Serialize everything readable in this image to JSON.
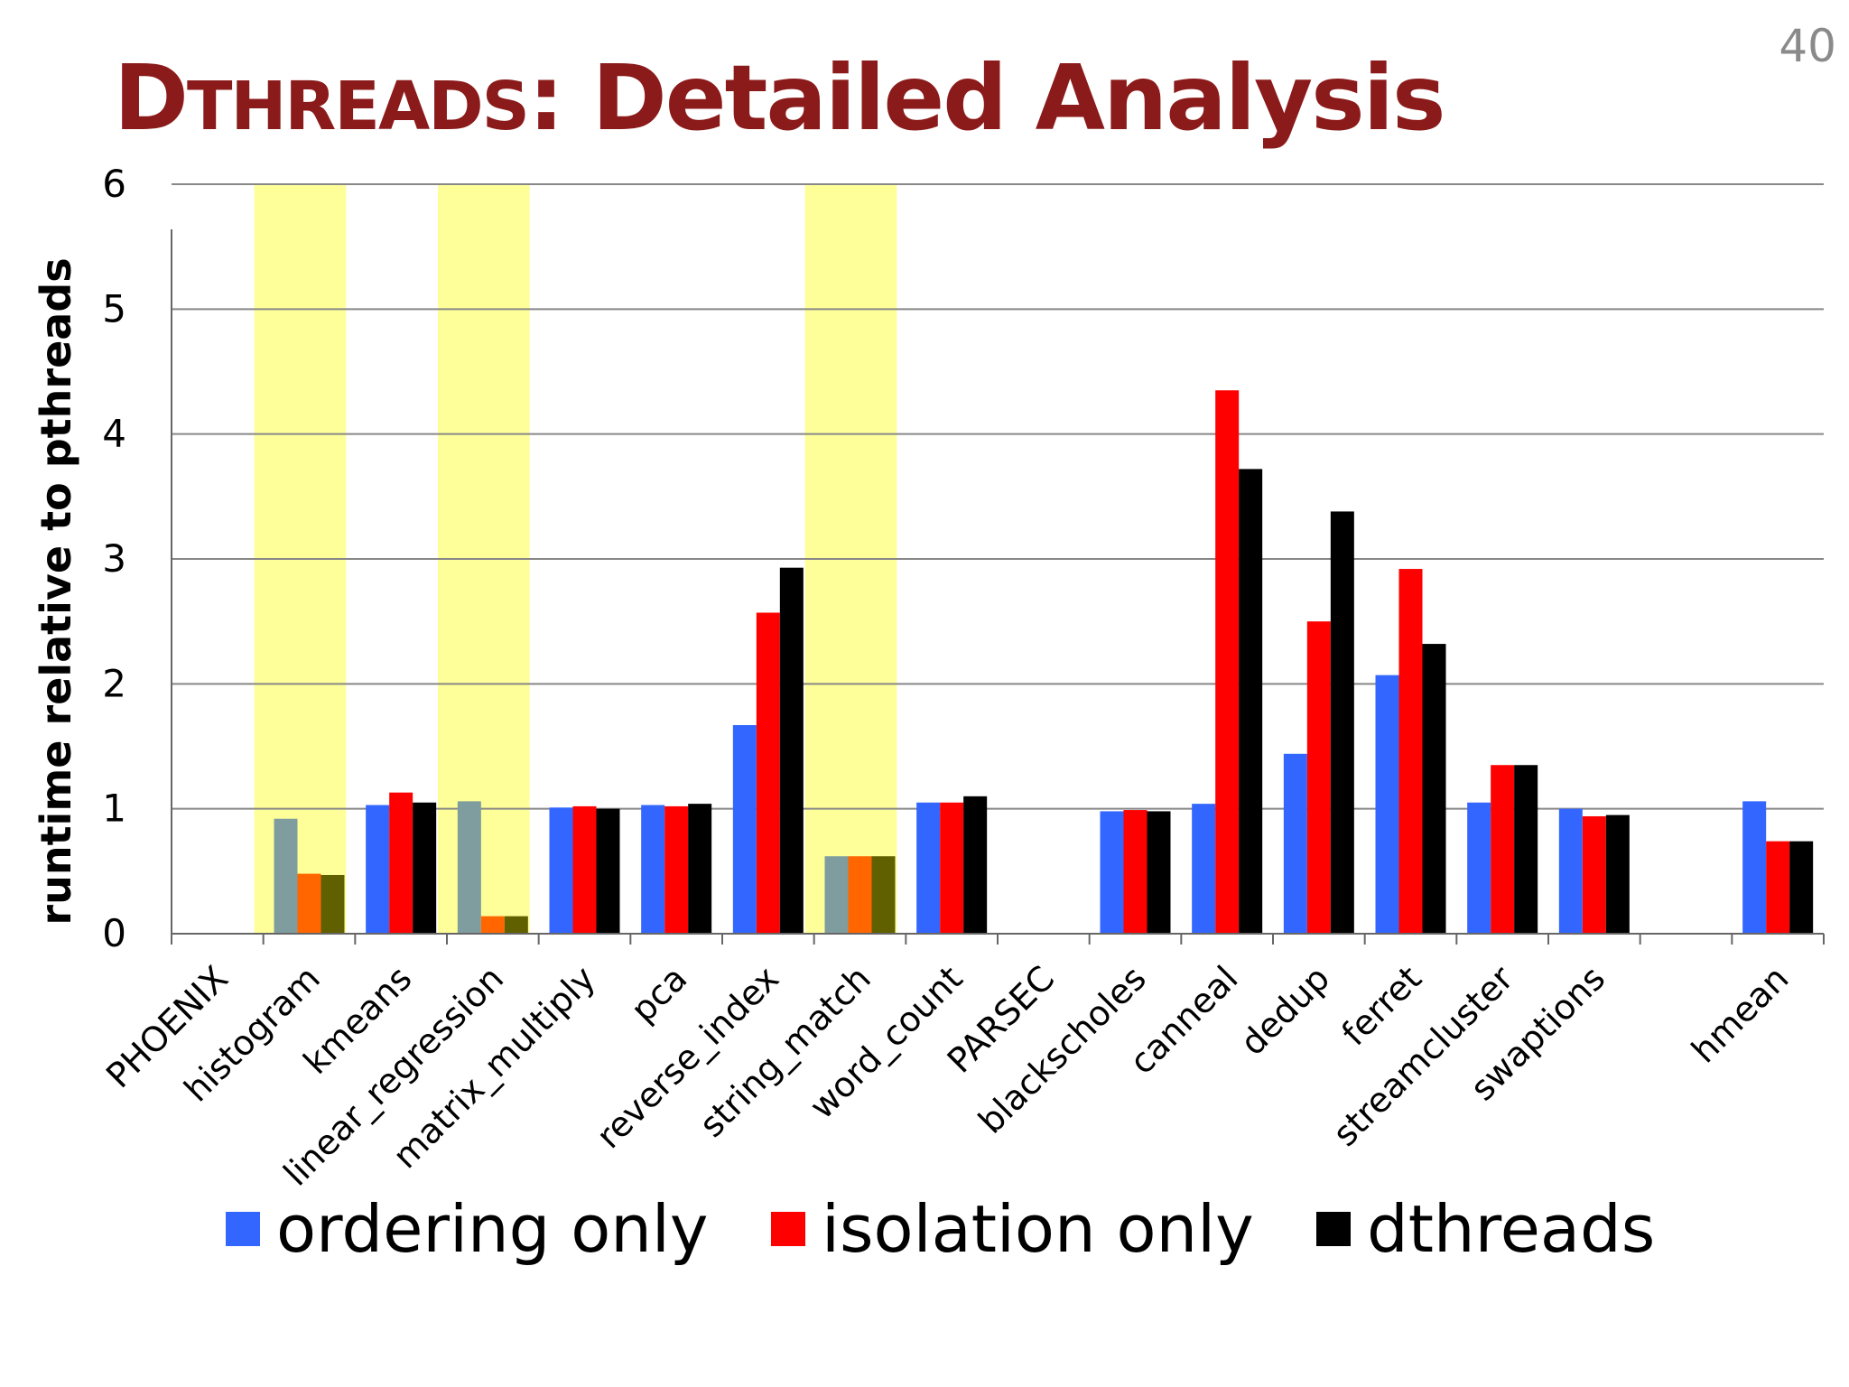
{
  "slide": {
    "number": "40",
    "title_initial": "D",
    "title_smallcaps": "THREADS",
    "title_rest": ": Detailed Analysis"
  },
  "colors": {
    "ordering": "#3366ff",
    "isolation": "#ff0000",
    "dthreads": "#000000",
    "highlight": "#ffff99",
    "ordering_highlighted": "#7f9c9f",
    "isolation_highlighted": "#ff6600",
    "dthreads_highlighted": "#606000",
    "title": "#8b1a1a",
    "grid": "#888888"
  },
  "chart_data": {
    "type": "bar",
    "ylabel": "runtime relative to pthreads",
    "ylim": [
      0,
      6
    ],
    "yticks": [
      "0",
      "1",
      "2",
      "3",
      "4",
      "5",
      "6"
    ],
    "grid": true,
    "legend_position": "bottom",
    "categories": [
      "PHOENIX",
      "histogram",
      "kmeans",
      "linear_regression",
      "matrix_multiply",
      "pca",
      "reverse_index",
      "string_match",
      "word_count",
      "PARSEC",
      "blackscholes",
      "canneal",
      "dedup",
      "ferret",
      "streamcluster",
      "swaptions",
      "",
      "hmean"
    ],
    "highlighted_categories": [
      "histogram",
      "linear_regression",
      "string_match"
    ],
    "series": [
      {
        "name": "ordering only",
        "values": [
          null,
          0.92,
          1.03,
          1.06,
          1.01,
          1.03,
          1.67,
          0.62,
          1.05,
          null,
          0.98,
          1.04,
          1.44,
          2.07,
          1.05,
          1.0,
          null,
          1.06
        ]
      },
      {
        "name": "isolation only",
        "values": [
          null,
          0.48,
          1.13,
          0.14,
          1.02,
          1.02,
          2.57,
          0.62,
          1.05,
          null,
          0.99,
          4.35,
          2.5,
          2.92,
          1.35,
          0.94,
          null,
          0.74
        ]
      },
      {
        "name": "dthreads",
        "values": [
          null,
          0.47,
          1.05,
          0.14,
          1.0,
          1.04,
          2.93,
          0.62,
          1.1,
          null,
          0.98,
          3.72,
          3.38,
          2.32,
          1.35,
          0.95,
          null,
          0.74
        ]
      }
    ]
  }
}
